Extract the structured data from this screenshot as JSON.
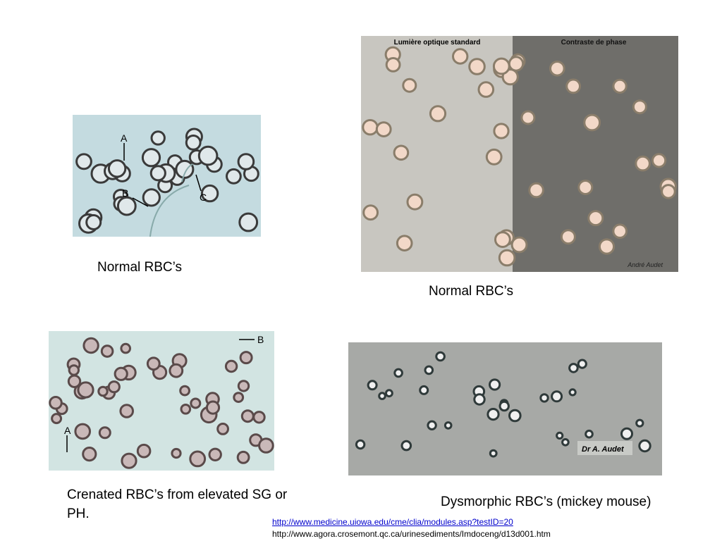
{
  "images": [
    {
      "labels": [
        "A",
        "B",
        "C"
      ]
    },
    {
      "headers": [
        "Lumière optique standard",
        "Contraste de phase"
      ],
      "credit": "André Audet"
    },
    {
      "labels": [
        "A",
        "B"
      ]
    },
    {
      "credit": "Dr A. Audet"
    }
  ],
  "captions": [
    "Normal RBC’s",
    "Normal RBC’s",
    "Crenated RBC’s from elevated SG or PH.",
    "Dysmorphic RBC’s (mickey mouse)"
  ],
  "links": [
    "http://www.medicine.uiowa.edu/cme/clia/modules.asp?testID=20",
    "http://www.agora.crosemont.qc.ca/urinesediments/Imdoceng/d13d001.htm"
  ]
}
